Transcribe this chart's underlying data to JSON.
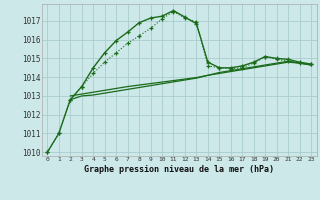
{
  "title": "Graphe pression niveau de la mer (hPa)",
  "bg_color": "#cce8e8",
  "grid_color": "#aacccc",
  "line_color": "#1a6b1a",
  "xlim": [
    -0.5,
    23.5
  ],
  "ylim": [
    1009.8,
    1017.9
  ],
  "xticks": [
    0,
    1,
    2,
    3,
    4,
    5,
    6,
    7,
    8,
    9,
    10,
    11,
    12,
    13,
    14,
    15,
    16,
    17,
    18,
    19,
    20,
    21,
    22,
    23
  ],
  "yticks": [
    1010,
    1011,
    1012,
    1013,
    1014,
    1015,
    1016,
    1017
  ],
  "line1_dotted": {
    "x": [
      0,
      1,
      2,
      3,
      4,
      5,
      6,
      7,
      8,
      9,
      10,
      11,
      12,
      13,
      14,
      15,
      16,
      17,
      18,
      19,
      20,
      21,
      22,
      23
    ],
    "y": [
      1010.0,
      1011.0,
      1012.8,
      1013.5,
      1014.2,
      1014.8,
      1015.3,
      1015.8,
      1016.2,
      1016.6,
      1017.1,
      1017.5,
      1017.15,
      1016.95,
      1014.6,
      1014.5,
      1014.45,
      1014.5,
      1014.75,
      1015.1,
      1014.95,
      1014.85,
      1014.75,
      1014.7
    ]
  },
  "line2_solid": {
    "x": [
      0,
      1,
      2,
      3,
      4,
      5,
      6,
      7,
      8,
      9,
      10,
      11,
      12,
      13,
      14,
      15,
      16,
      17,
      18,
      19,
      20,
      21,
      22,
      23
    ],
    "y": [
      1010.0,
      1011.0,
      1012.8,
      1013.5,
      1014.5,
      1015.3,
      1015.95,
      1016.4,
      1016.9,
      1017.15,
      1017.25,
      1017.55,
      1017.2,
      1016.85,
      1014.8,
      1014.5,
      1014.5,
      1014.6,
      1014.8,
      1015.1,
      1015.0,
      1014.95,
      1014.8,
      1014.7
    ]
  },
  "line3_flat": {
    "x": [
      2,
      3,
      4,
      5,
      6,
      7,
      8,
      9,
      10,
      11,
      12,
      13,
      14,
      15,
      16,
      17,
      18,
      19,
      20,
      21,
      22,
      23
    ],
    "y": [
      1012.8,
      1013.0,
      1013.05,
      1013.15,
      1013.25,
      1013.35,
      1013.45,
      1013.55,
      1013.65,
      1013.75,
      1013.85,
      1013.95,
      1014.1,
      1014.25,
      1014.35,
      1014.45,
      1014.55,
      1014.65,
      1014.75,
      1014.85,
      1014.75,
      1014.65
    ]
  },
  "line4_flat": {
    "x": [
      2,
      3,
      4,
      5,
      6,
      7,
      8,
      9,
      10,
      11,
      12,
      13,
      14,
      15,
      16,
      17,
      18,
      19,
      20,
      21,
      22,
      23
    ],
    "y": [
      1013.0,
      1013.1,
      1013.2,
      1013.3,
      1013.4,
      1013.5,
      1013.58,
      1013.66,
      1013.74,
      1013.82,
      1013.9,
      1013.98,
      1014.1,
      1014.2,
      1014.3,
      1014.4,
      1014.5,
      1014.6,
      1014.7,
      1014.8,
      1014.75,
      1014.65
    ]
  }
}
